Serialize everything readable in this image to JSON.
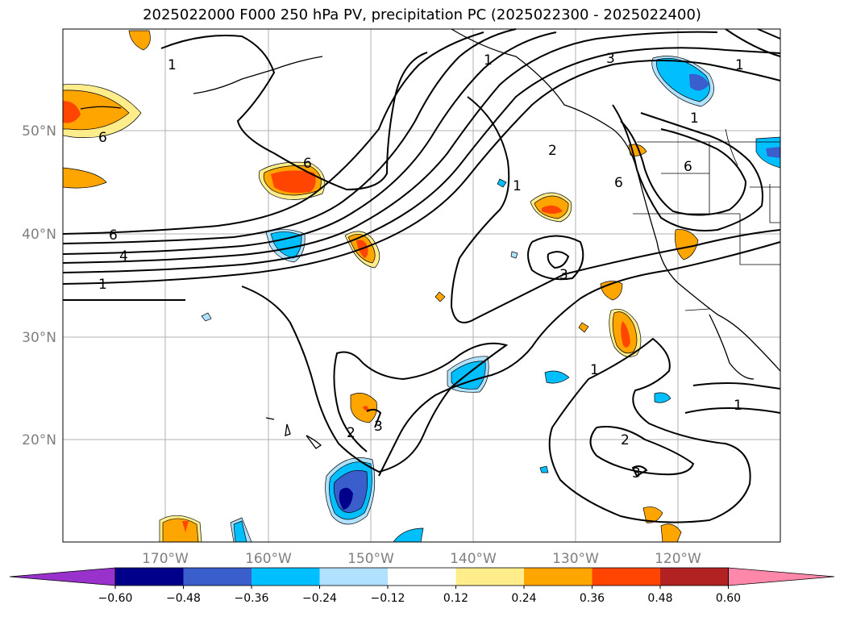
{
  "title": "2025022000 F000 250 hPa PV, precipitation PC (2025022300 - 2025022400)",
  "lat_labels": [
    "50°N",
    "40°N",
    "30°N",
    "20°N"
  ],
  "lon_labels": [
    "170°W",
    "160°W",
    "150°W",
    "140°W",
    "130°W",
    "120°W"
  ],
  "colorbar": {
    "ticks": [
      "−0.60",
      "−0.48",
      "−0.36",
      "−0.24",
      "−0.12",
      "0.12",
      "0.24",
      "0.36",
      "0.48",
      "0.60"
    ],
    "colors": [
      "#9932cc",
      "#00008b",
      "#3a5fcd",
      "#00bfff",
      "#b0e2ff",
      "#ffffff",
      "#ffec8b",
      "#ffa500",
      "#ff4500",
      "#b22222",
      "#ff88aa"
    ]
  },
  "pv_contour_labels": [
    "1",
    "4",
    "6",
    "6",
    "1",
    "2",
    "1",
    "3",
    "6",
    "3",
    "6",
    "1",
    "1",
    "1",
    "2",
    "2",
    "3",
    "3",
    "1",
    "1",
    "6"
  ],
  "colors": {
    "grid": "#b0b0b0",
    "contour": "#000000",
    "tick_text": "#7f7f7f"
  }
}
